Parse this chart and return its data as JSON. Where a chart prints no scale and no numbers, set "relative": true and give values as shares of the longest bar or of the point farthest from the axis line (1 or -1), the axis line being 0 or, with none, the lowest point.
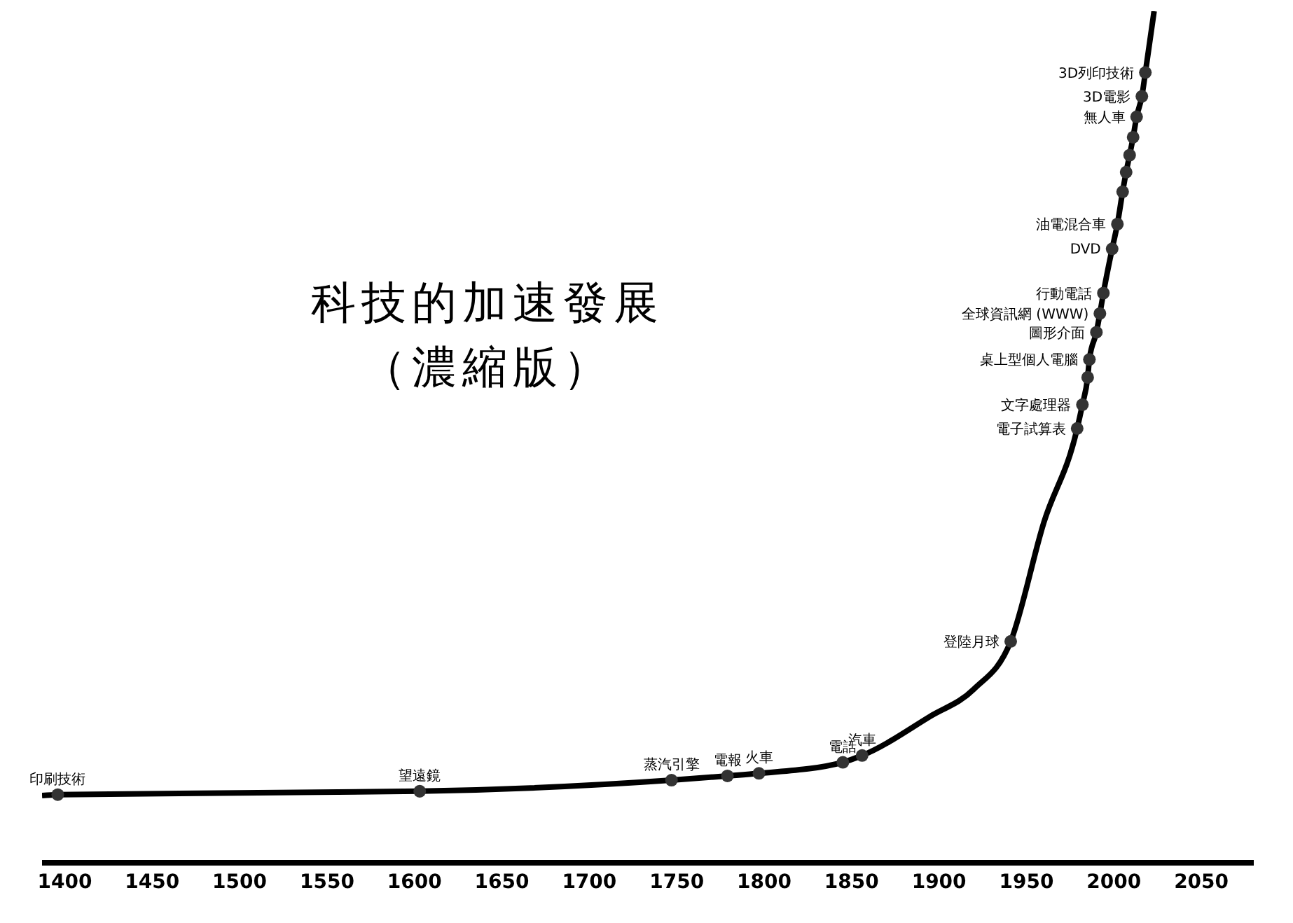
{
  "chart_data": {
    "type": "line",
    "title": "科技的加速發展",
    "subtitle": "（濃縮版）",
    "relative": true,
    "xlim": [
      1387,
      2080
    ],
    "xticks": [
      1400,
      1450,
      1500,
      1550,
      1600,
      1650,
      1700,
      1750,
      1800,
      1850,
      1900,
      1950,
      2000,
      2050
    ],
    "grid": false,
    "series": [
      {
        "color": "#000000",
        "marker": "none",
        "x": [
          1387,
          1396,
          1603,
          1747,
          1779,
          1797,
          1845,
          1856,
          1895,
          1920,
          1941,
          1960,
          1979,
          1982,
          1985,
          1986,
          1990,
          1992,
          1994,
          1999,
          2002,
          2005,
          2007,
          2009,
          2011,
          2013,
          2016,
          2018,
          2023
        ],
        "values": [
          0.079,
          0.08,
          0.084,
          0.097,
          0.102,
          0.105,
          0.118,
          0.126,
          0.172,
          0.204,
          0.26,
          0.4,
          0.51,
          0.538,
          0.57,
          0.591,
          0.623,
          0.645,
          0.669,
          0.721,
          0.75,
          0.788,
          0.811,
          0.831,
          0.852,
          0.876,
          0.9,
          0.928,
          1.0
        ]
      },
      {
        "type": "scatter",
        "color": "#333333",
        "marker": "circle",
        "x": [
          1396,
          1603,
          1747,
          1779,
          1797,
          1845,
          1856,
          1941,
          1979,
          1982,
          1985,
          1986,
          1990,
          1992,
          1994,
          1999,
          2002,
          2005,
          2007,
          2009,
          2011,
          2013,
          2016,
          2018
        ],
        "values": [
          0.08,
          0.084,
          0.097,
          0.102,
          0.105,
          0.118,
          0.126,
          0.26,
          0.51,
          0.538,
          0.57,
          0.591,
          0.623,
          0.645,
          0.669,
          0.721,
          0.75,
          0.788,
          0.811,
          0.831,
          0.852,
          0.876,
          0.9,
          0.928
        ]
      }
    ],
    "annotations": [
      {
        "text": "印刷技術",
        "x": 1396,
        "y": 0.08
      },
      {
        "text": "望遠鏡",
        "x": 1603,
        "y": 0.084
      },
      {
        "text": "蒸汽引擎",
        "x": 1747,
        "y": 0.097
      },
      {
        "text": "電報",
        "x": 1779,
        "y": 0.102
      },
      {
        "text": "火車",
        "x": 1797,
        "y": 0.105
      },
      {
        "text": "電話",
        "x": 1845,
        "y": 0.118
      },
      {
        "text": "汽車",
        "x": 1856,
        "y": 0.126
      },
      {
        "text": "登陸月球",
        "x": 1941,
        "y": 0.26
      },
      {
        "text": "電子試算表",
        "x": 1979,
        "y": 0.51
      },
      {
        "text": "文字處理器",
        "x": 1982,
        "y": 0.538
      },
      {
        "text": "桌上型個人電腦",
        "x": 1986,
        "y": 0.591
      },
      {
        "text": "圖形介面",
        "x": 1990,
        "y": 0.623
      },
      {
        "text": "全球資訊網 (WWW)",
        "x": 1992,
        "y": 0.645
      },
      {
        "text": "行動電話",
        "x": 1994,
        "y": 0.669
      },
      {
        "text": "DVD",
        "x": 1999,
        "y": 0.721
      },
      {
        "text": "油電混合車",
        "x": 2002,
        "y": 0.75
      },
      {
        "text": "無人車",
        "x": 2013,
        "y": 0.876
      },
      {
        "text": "3D電影",
        "x": 2016,
        "y": 0.9
      },
      {
        "text": "3D列印技術",
        "x": 2018,
        "y": 0.928
      }
    ]
  }
}
